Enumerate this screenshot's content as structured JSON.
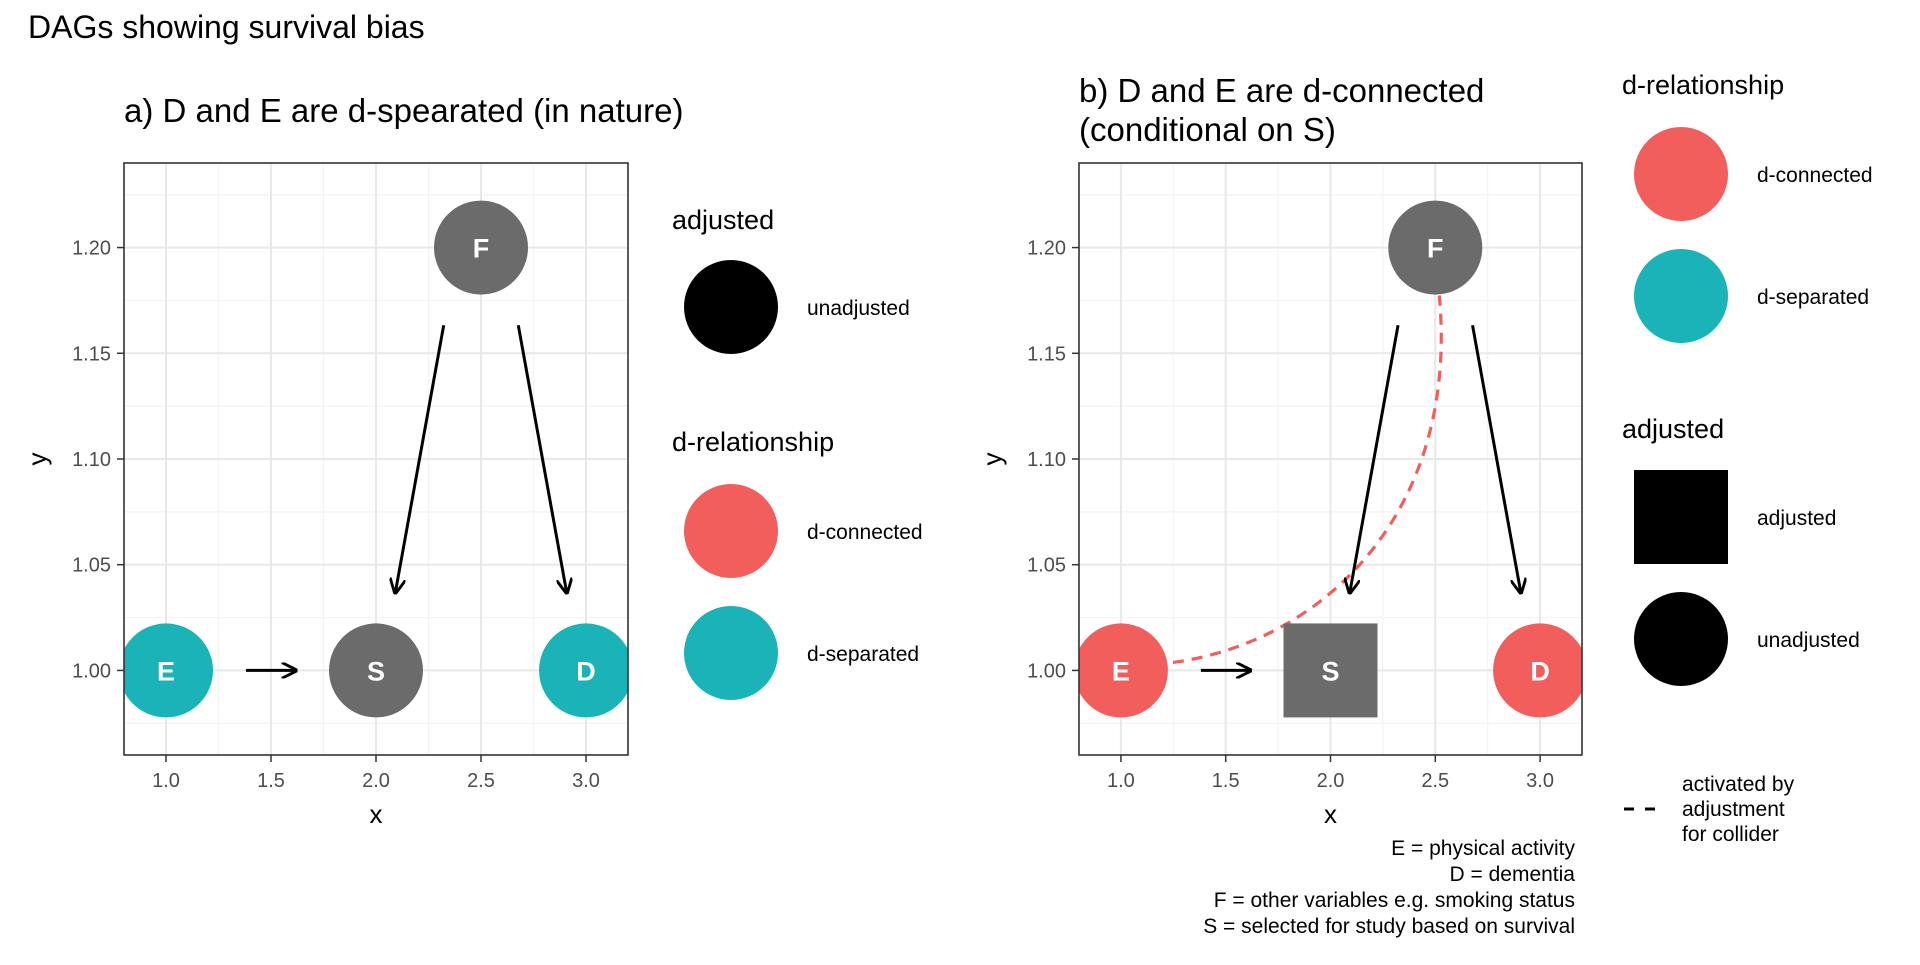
{
  "title": "DAGs showing survival bias",
  "colors": {
    "connected": "#F25E5B",
    "separated": "#19B3B8",
    "neutral": "#6B6B6B",
    "grid_major": "#E8E8E8",
    "grid_minor": "#F3F3F3",
    "panel_border": "#333333",
    "arrow": "#000000"
  },
  "axis": {
    "xlabel": "x",
    "ylabel": "y",
    "xticks": [
      "1.0",
      "1.5",
      "2.0",
      "2.5",
      "3.0"
    ],
    "yticks": [
      "1.00",
      "1.05",
      "1.10",
      "1.15",
      "1.20"
    ],
    "x_values": [
      1.0,
      1.5,
      2.0,
      2.5,
      3.0
    ],
    "y_values": [
      1.0,
      1.05,
      1.1,
      1.15,
      1.2
    ],
    "xlim": [
      0.8,
      3.2
    ],
    "ylim": [
      0.96,
      1.24
    ]
  },
  "panels": [
    {
      "title_lines": [
        "a) D and E are d-spearated (in nature)"
      ],
      "nodes": [
        {
          "label": "E",
          "x": 1.0,
          "y": 1.0,
          "relationship": "d-separated",
          "adjusted": false
        },
        {
          "label": "S",
          "x": 2.0,
          "y": 1.0,
          "relationship": "neutral",
          "adjusted": false
        },
        {
          "label": "D",
          "x": 3.0,
          "y": 1.0,
          "relationship": "d-separated",
          "adjusted": false
        },
        {
          "label": "F",
          "x": 2.5,
          "y": 1.2,
          "relationship": "neutral",
          "adjusted": false
        }
      ],
      "edges": [
        {
          "from": "E",
          "to": "S"
        },
        {
          "from": "F",
          "to": "S"
        },
        {
          "from": "F",
          "to": "D"
        }
      ],
      "activated_path": false
    },
    {
      "title_lines": [
        "b) D and E are d-connected",
        "(conditional on S)"
      ],
      "nodes": [
        {
          "label": "E",
          "x": 1.0,
          "y": 1.0,
          "relationship": "d-connected",
          "adjusted": false
        },
        {
          "label": "S",
          "x": 2.0,
          "y": 1.0,
          "relationship": "neutral",
          "adjusted": true
        },
        {
          "label": "D",
          "x": 3.0,
          "y": 1.0,
          "relationship": "d-connected",
          "adjusted": false
        },
        {
          "label": "F",
          "x": 2.5,
          "y": 1.2,
          "relationship": "neutral",
          "adjusted": false
        }
      ],
      "edges": [
        {
          "from": "E",
          "to": "S"
        },
        {
          "from": "F",
          "to": "S"
        },
        {
          "from": "F",
          "to": "D"
        }
      ],
      "activated_path": true
    }
  ],
  "legend_a": {
    "adjusted_title": "adjusted",
    "adjusted_items": [
      "unadjusted"
    ],
    "relationship_title": "d-relationship",
    "relationship_items": [
      "d-connected",
      "d-separated"
    ]
  },
  "legend_b": {
    "relationship_title": "d-relationship",
    "relationship_items": [
      "d-connected",
      "d-separated"
    ],
    "adjusted_title": "adjusted",
    "adjusted_items": [
      "adjusted",
      "unadjusted"
    ],
    "activated_lines": [
      "activated by",
      "adjustment",
      "for collider"
    ]
  },
  "caption_lines": [
    "E = physical activity",
    "D = dementia",
    "F = other variables e.g. smoking status",
    "S = selected for study based on survival"
  ]
}
